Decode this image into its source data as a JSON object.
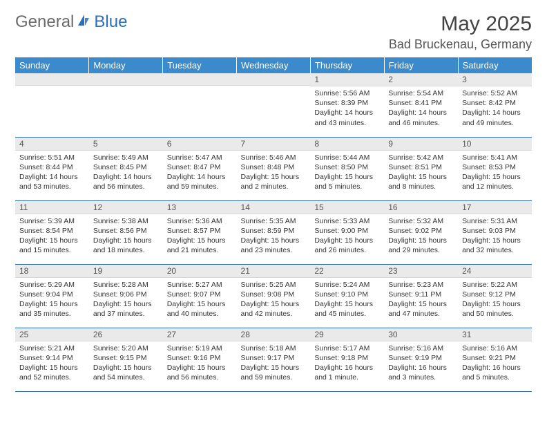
{
  "logo": {
    "text1": "General",
    "text2": "Blue"
  },
  "title": "May 2025",
  "location": "Bad Bruckenau, Germany",
  "colors": {
    "header_bg": "#3b8bcc",
    "header_text": "#ffffff",
    "row_divider": "#2a6aa8",
    "daynum_bg": "#eaeaea",
    "logo_blue": "#2d6fb8",
    "logo_gray": "#6b6b6b"
  },
  "weekdays": [
    "Sunday",
    "Monday",
    "Tuesday",
    "Wednesday",
    "Thursday",
    "Friday",
    "Saturday"
  ],
  "weeks": [
    [
      {
        "num": "",
        "sunrise": "",
        "sunset": "",
        "daylight": ""
      },
      {
        "num": "",
        "sunrise": "",
        "sunset": "",
        "daylight": ""
      },
      {
        "num": "",
        "sunrise": "",
        "sunset": "",
        "daylight": ""
      },
      {
        "num": "",
        "sunrise": "",
        "sunset": "",
        "daylight": ""
      },
      {
        "num": "1",
        "sunrise": "Sunrise: 5:56 AM",
        "sunset": "Sunset: 8:39 PM",
        "daylight": "Daylight: 14 hours and 43 minutes."
      },
      {
        "num": "2",
        "sunrise": "Sunrise: 5:54 AM",
        "sunset": "Sunset: 8:41 PM",
        "daylight": "Daylight: 14 hours and 46 minutes."
      },
      {
        "num": "3",
        "sunrise": "Sunrise: 5:52 AM",
        "sunset": "Sunset: 8:42 PM",
        "daylight": "Daylight: 14 hours and 49 minutes."
      }
    ],
    [
      {
        "num": "4",
        "sunrise": "Sunrise: 5:51 AM",
        "sunset": "Sunset: 8:44 PM",
        "daylight": "Daylight: 14 hours and 53 minutes."
      },
      {
        "num": "5",
        "sunrise": "Sunrise: 5:49 AM",
        "sunset": "Sunset: 8:45 PM",
        "daylight": "Daylight: 14 hours and 56 minutes."
      },
      {
        "num": "6",
        "sunrise": "Sunrise: 5:47 AM",
        "sunset": "Sunset: 8:47 PM",
        "daylight": "Daylight: 14 hours and 59 minutes."
      },
      {
        "num": "7",
        "sunrise": "Sunrise: 5:46 AM",
        "sunset": "Sunset: 8:48 PM",
        "daylight": "Daylight: 15 hours and 2 minutes."
      },
      {
        "num": "8",
        "sunrise": "Sunrise: 5:44 AM",
        "sunset": "Sunset: 8:50 PM",
        "daylight": "Daylight: 15 hours and 5 minutes."
      },
      {
        "num": "9",
        "sunrise": "Sunrise: 5:42 AM",
        "sunset": "Sunset: 8:51 PM",
        "daylight": "Daylight: 15 hours and 8 minutes."
      },
      {
        "num": "10",
        "sunrise": "Sunrise: 5:41 AM",
        "sunset": "Sunset: 8:53 PM",
        "daylight": "Daylight: 15 hours and 12 minutes."
      }
    ],
    [
      {
        "num": "11",
        "sunrise": "Sunrise: 5:39 AM",
        "sunset": "Sunset: 8:54 PM",
        "daylight": "Daylight: 15 hours and 15 minutes."
      },
      {
        "num": "12",
        "sunrise": "Sunrise: 5:38 AM",
        "sunset": "Sunset: 8:56 PM",
        "daylight": "Daylight: 15 hours and 18 minutes."
      },
      {
        "num": "13",
        "sunrise": "Sunrise: 5:36 AM",
        "sunset": "Sunset: 8:57 PM",
        "daylight": "Daylight: 15 hours and 21 minutes."
      },
      {
        "num": "14",
        "sunrise": "Sunrise: 5:35 AM",
        "sunset": "Sunset: 8:59 PM",
        "daylight": "Daylight: 15 hours and 23 minutes."
      },
      {
        "num": "15",
        "sunrise": "Sunrise: 5:33 AM",
        "sunset": "Sunset: 9:00 PM",
        "daylight": "Daylight: 15 hours and 26 minutes."
      },
      {
        "num": "16",
        "sunrise": "Sunrise: 5:32 AM",
        "sunset": "Sunset: 9:02 PM",
        "daylight": "Daylight: 15 hours and 29 minutes."
      },
      {
        "num": "17",
        "sunrise": "Sunrise: 5:31 AM",
        "sunset": "Sunset: 9:03 PM",
        "daylight": "Daylight: 15 hours and 32 minutes."
      }
    ],
    [
      {
        "num": "18",
        "sunrise": "Sunrise: 5:29 AM",
        "sunset": "Sunset: 9:04 PM",
        "daylight": "Daylight: 15 hours and 35 minutes."
      },
      {
        "num": "19",
        "sunrise": "Sunrise: 5:28 AM",
        "sunset": "Sunset: 9:06 PM",
        "daylight": "Daylight: 15 hours and 37 minutes."
      },
      {
        "num": "20",
        "sunrise": "Sunrise: 5:27 AM",
        "sunset": "Sunset: 9:07 PM",
        "daylight": "Daylight: 15 hours and 40 minutes."
      },
      {
        "num": "21",
        "sunrise": "Sunrise: 5:25 AM",
        "sunset": "Sunset: 9:08 PM",
        "daylight": "Daylight: 15 hours and 42 minutes."
      },
      {
        "num": "22",
        "sunrise": "Sunrise: 5:24 AM",
        "sunset": "Sunset: 9:10 PM",
        "daylight": "Daylight: 15 hours and 45 minutes."
      },
      {
        "num": "23",
        "sunrise": "Sunrise: 5:23 AM",
        "sunset": "Sunset: 9:11 PM",
        "daylight": "Daylight: 15 hours and 47 minutes."
      },
      {
        "num": "24",
        "sunrise": "Sunrise: 5:22 AM",
        "sunset": "Sunset: 9:12 PM",
        "daylight": "Daylight: 15 hours and 50 minutes."
      }
    ],
    [
      {
        "num": "25",
        "sunrise": "Sunrise: 5:21 AM",
        "sunset": "Sunset: 9:14 PM",
        "daylight": "Daylight: 15 hours and 52 minutes."
      },
      {
        "num": "26",
        "sunrise": "Sunrise: 5:20 AM",
        "sunset": "Sunset: 9:15 PM",
        "daylight": "Daylight: 15 hours and 54 minutes."
      },
      {
        "num": "27",
        "sunrise": "Sunrise: 5:19 AM",
        "sunset": "Sunset: 9:16 PM",
        "daylight": "Daylight: 15 hours and 56 minutes."
      },
      {
        "num": "28",
        "sunrise": "Sunrise: 5:18 AM",
        "sunset": "Sunset: 9:17 PM",
        "daylight": "Daylight: 15 hours and 59 minutes."
      },
      {
        "num": "29",
        "sunrise": "Sunrise: 5:17 AM",
        "sunset": "Sunset: 9:18 PM",
        "daylight": "Daylight: 16 hours and 1 minute."
      },
      {
        "num": "30",
        "sunrise": "Sunrise: 5:16 AM",
        "sunset": "Sunset: 9:19 PM",
        "daylight": "Daylight: 16 hours and 3 minutes."
      },
      {
        "num": "31",
        "sunrise": "Sunrise: 5:16 AM",
        "sunset": "Sunset: 9:21 PM",
        "daylight": "Daylight: 16 hours and 5 minutes."
      }
    ]
  ]
}
